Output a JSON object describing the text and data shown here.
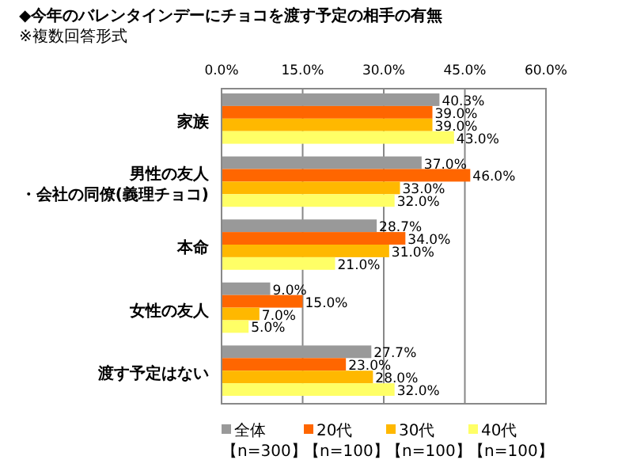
{
  "chart_data": {
    "type": "bar",
    "orientation": "horizontal",
    "title": "◆今年のバレンタインデーにチョコを渡す予定の相手の有無",
    "subtitle": "※複数回答形式",
    "categories": [
      "家族",
      "男性の友人・会社の同僚(義理チョコ)",
      "本命",
      "女性の友人",
      "渡す予定はない"
    ],
    "series": [
      {
        "name": "全体【n=300】",
        "color": "#999999",
        "values": [
          40.3,
          37.0,
          28.7,
          9.0,
          27.7
        ],
        "value_labels": [
          "40.3%",
          "37.0%",
          "28.7%",
          "9.0%",
          "27.7%"
        ]
      },
      {
        "name": "20代【n=100】",
        "color": "#ff6600",
        "values": [
          39.0,
          46.0,
          34.0,
          15.0,
          23.0
        ],
        "value_labels": [
          "39.0%",
          "46.0%",
          "34.0%",
          "15.0%",
          "23.0%"
        ]
      },
      {
        "name": "30代【n=100】",
        "color": "#ffb800",
        "values": [
          39.0,
          33.0,
          31.0,
          7.0,
          28.0
        ],
        "value_labels": [
          "39.0%",
          "33.0%",
          "31.0%",
          "7.0%",
          "28.0%"
        ]
      },
      {
        "name": "40代【n=100】",
        "color": "#ffff66",
        "values": [
          43.0,
          32.0,
          21.0,
          5.0,
          32.0
        ],
        "value_labels": [
          "43.0%",
          "32.0%",
          "21.0%",
          "5.0%",
          "32.0%"
        ]
      }
    ],
    "xlim": [
      0,
      60
    ],
    "xticks": [
      {
        "value": 0,
        "label": "0.0%"
      },
      {
        "value": 15,
        "label": "15.0%"
      },
      {
        "value": 30,
        "label": "30.0%"
      },
      {
        "value": 45,
        "label": "45.0%"
      },
      {
        "value": 60,
        "label": "60.0%"
      }
    ],
    "grid": "x",
    "legend": "bottom"
  }
}
